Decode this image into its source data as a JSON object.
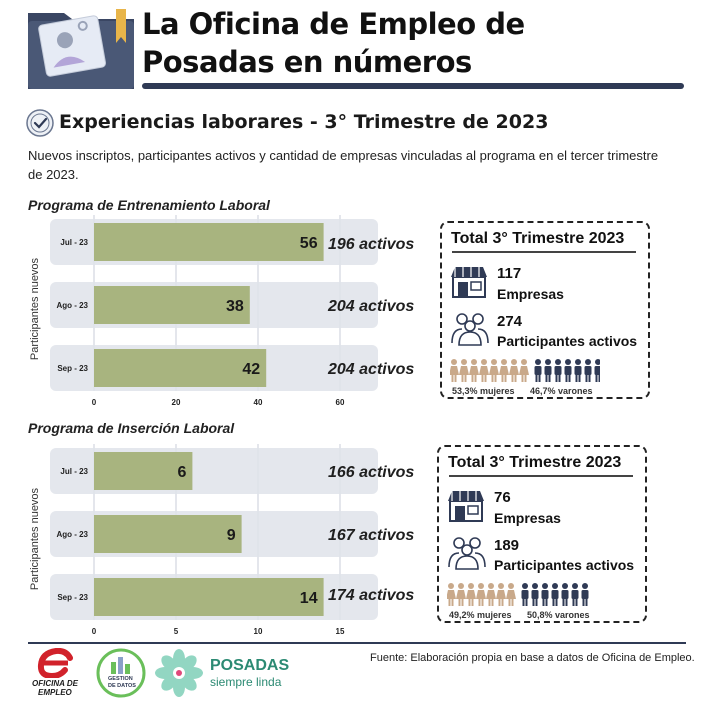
{
  "header": {
    "title_line1": "La Oficina de Empleo de",
    "title_line2": "Posadas en números"
  },
  "section": {
    "title": "Experiencias laborares - 3° Trimestre de 2023",
    "description_line1": "Nuevos inscriptos, participantes activos y cantidad de empresas vinculadas al programa en el tercer trimestre",
    "description_line2": "de 2023."
  },
  "programs": [
    {
      "title": "Programa de Entrenamiento Laboral",
      "ylabel": "Participantes nuevos",
      "active_labels": [
        "196 activos",
        "204 activos",
        "204 activos"
      ],
      "totals": {
        "title": "Total 3° Trimestre 2023",
        "empresas_num": "117",
        "empresas_label": "Empresas",
        "participantes_num": "274",
        "participantes_label": "Participantes activos",
        "mujeres_label": "53,3% mujeres",
        "varones_label": "46,7% varones"
      }
    },
    {
      "title": "Programa de Inserción Laboral",
      "ylabel": "Participantes nuevos",
      "active_labels": [
        "166 activos",
        "167 activos",
        "174 activos"
      ],
      "totals": {
        "title": "Total 3° Trimestre 2023",
        "empresas_num": "76",
        "empresas_label": "Empresas",
        "participantes_num": "189",
        "participantes_label": "Participantes activos",
        "mujeres_label": "49,2% mujeres",
        "varones_label": "50,8% varones"
      }
    }
  ],
  "chart_data": [
    {
      "type": "bar",
      "orientation": "horizontal",
      "title": "Programa de Entrenamiento Laboral",
      "ylabel": "Participantes nuevos",
      "categories": [
        "Jul - 23",
        "Ago - 23",
        "Sep - 23"
      ],
      "values": [
        56,
        38,
        42
      ],
      "xlim": [
        0,
        60
      ],
      "xticks": [
        "0",
        "20",
        "40",
        "60"
      ],
      "bar_color": "#a8b47f",
      "track_color": "#dfe3ea"
    },
    {
      "type": "bar",
      "orientation": "horizontal",
      "title": "Programa de Inserción Laboral",
      "ylabel": "Participantes nuevos",
      "categories": [
        "Jul - 23",
        "Ago - 23",
        "Sep - 23"
      ],
      "values": [
        6,
        9,
        14
      ],
      "xlim": [
        0,
        15
      ],
      "xticks": [
        "0",
        "5",
        "10",
        "15"
      ],
      "bar_color": "#a8b47f",
      "track_color": "#dfe3ea"
    }
  ],
  "colors": {
    "navy": "#2f3a55",
    "bar_olive": "#a8b47f",
    "track": "#dfe3ea",
    "women_tan": "#c9a98a",
    "men_navy": "#2f3a55"
  },
  "footer": {
    "source": "Fuente: Elaboración propia en base a datos de Oficina de Empleo.",
    "logo1_line1": "OFICINA DE",
    "logo1_line2": "EMPLEO",
    "logo2_line1": "GESTION",
    "logo2_line2": "DE DATOS",
    "logo3_line1": "POSADAS",
    "logo3_line2": "siempre linda"
  },
  "icons": [
    "folder-id-icon",
    "check-badge-icon",
    "store-icon",
    "people-icon",
    "woman-icon",
    "man-icon"
  ]
}
